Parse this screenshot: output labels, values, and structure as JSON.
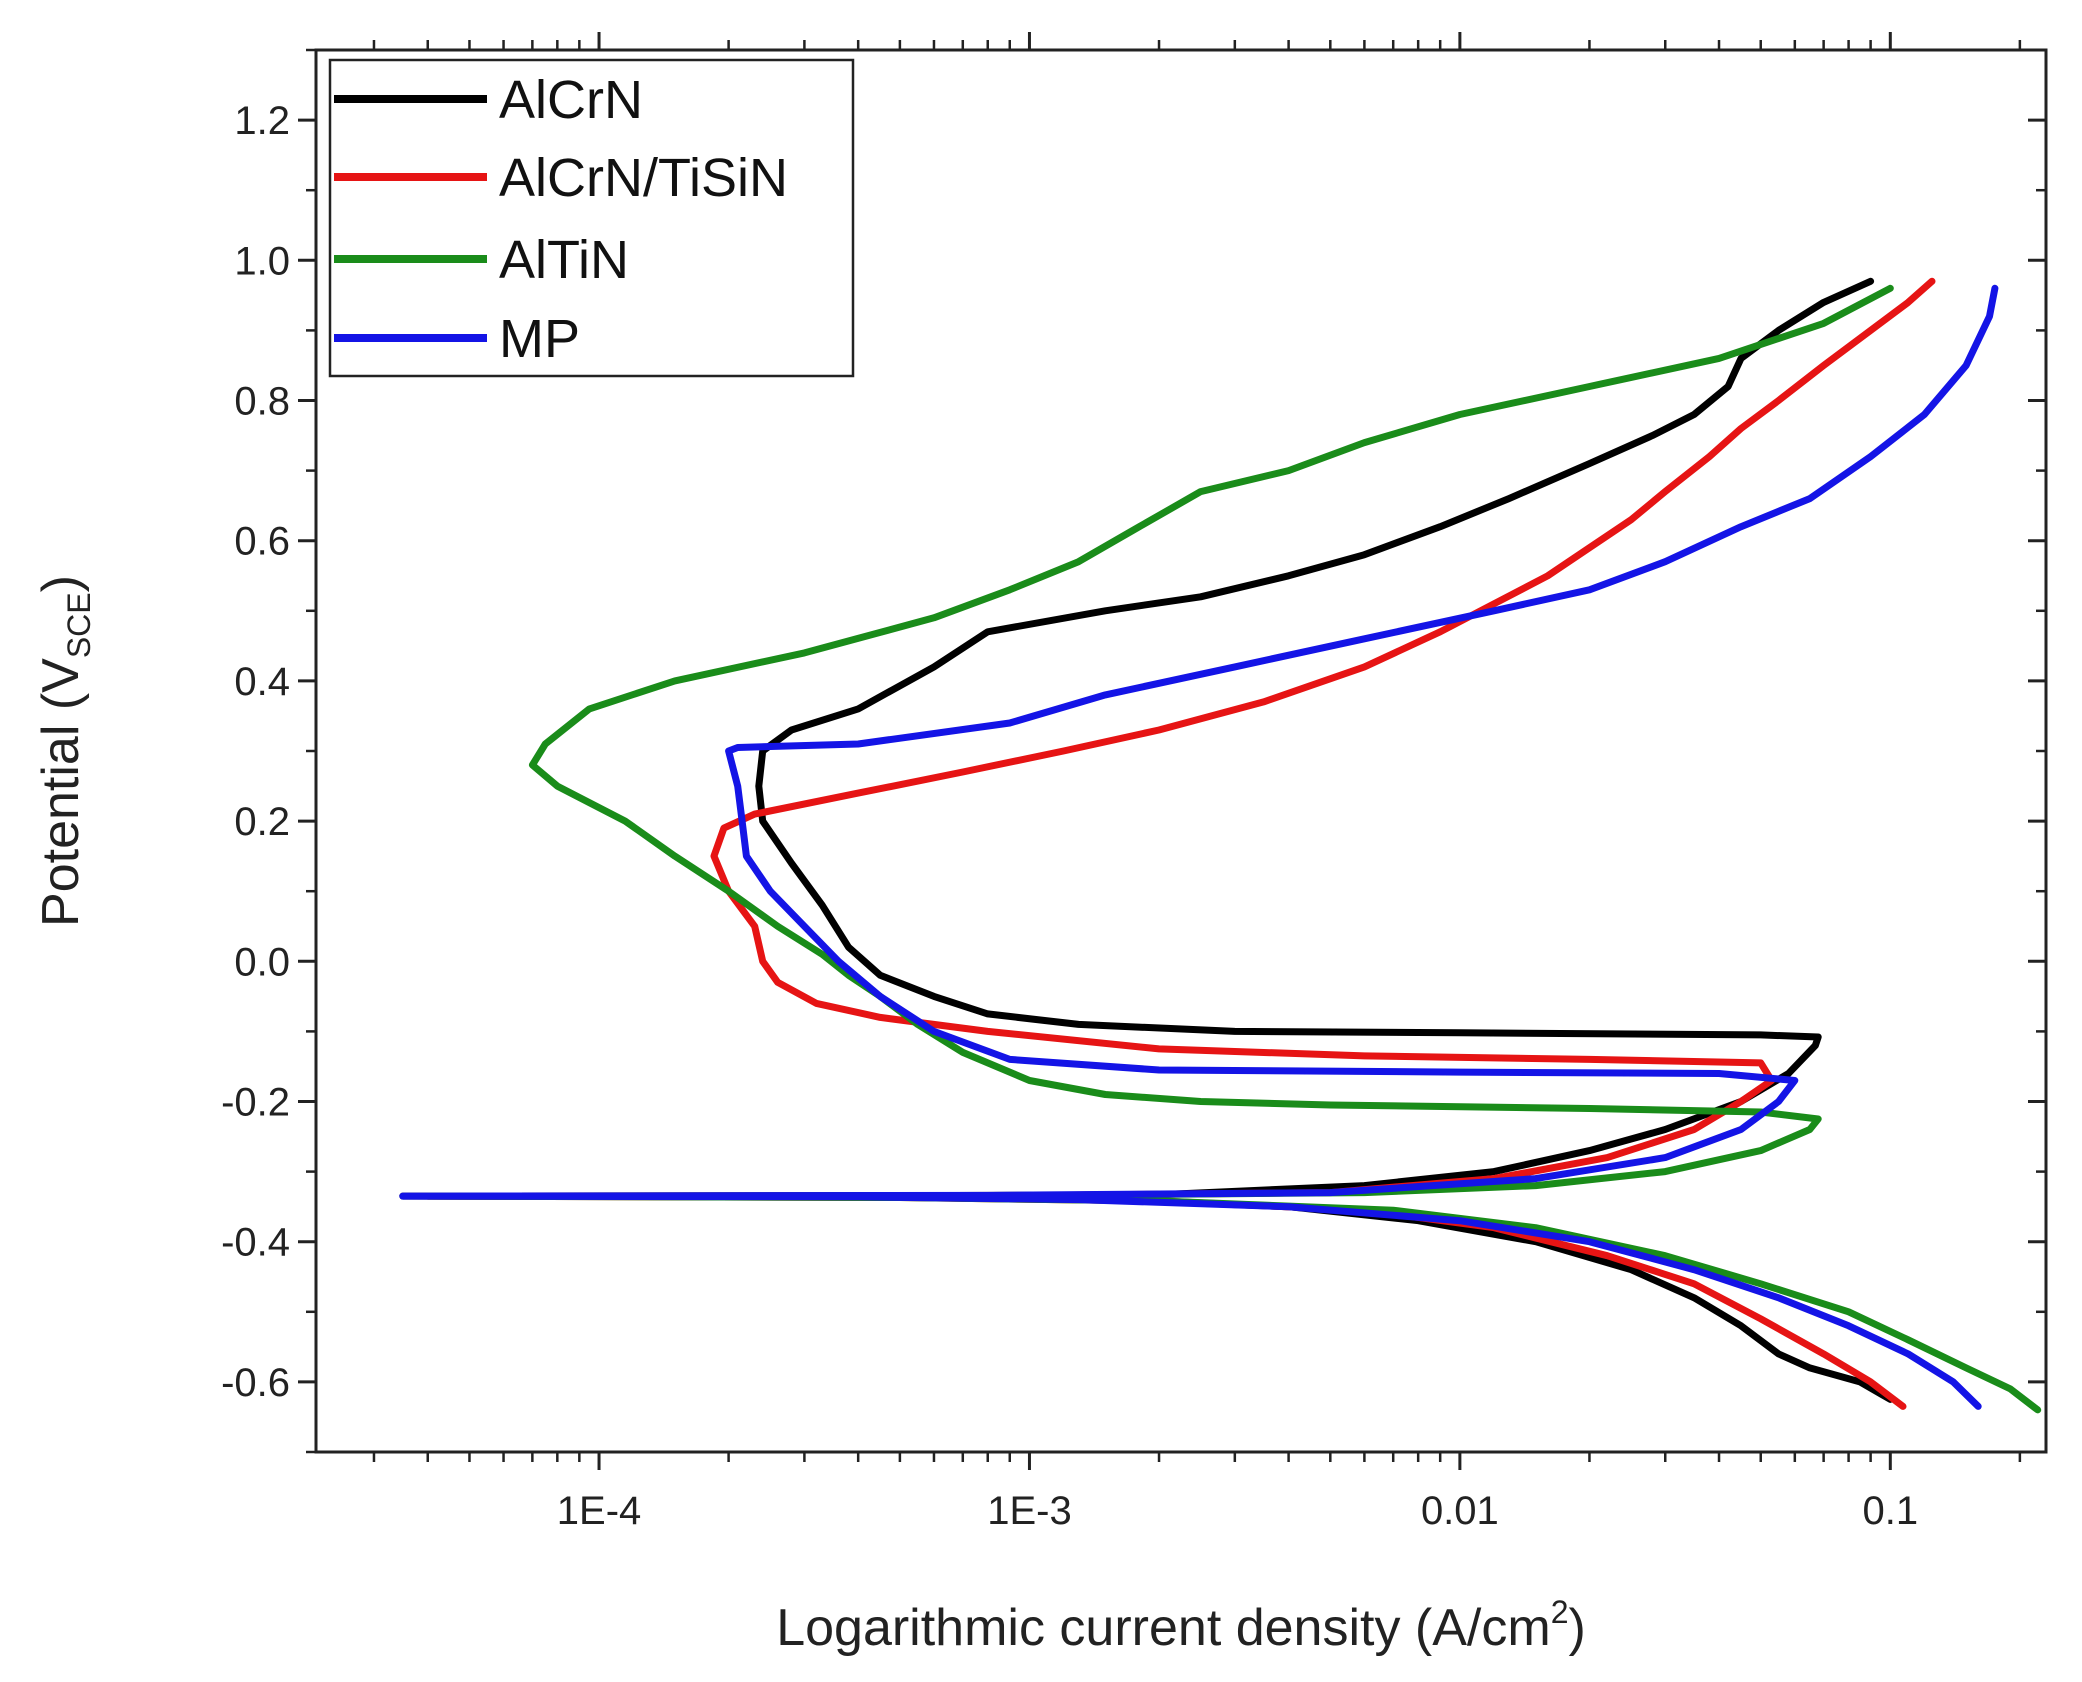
{
  "chart_data": {
    "type": "line",
    "title": "",
    "xlabel": {
      "main": "Logarithmic current density (A/cm",
      "sup": "2",
      "tail": ")"
    },
    "ylabel": {
      "main": "Potential (V",
      "sub": "SCE",
      "tail": ")"
    },
    "xscale": "log",
    "xlim": [
      2.2e-05,
      0.23
    ],
    "ylim": [
      -0.7,
      1.3
    ],
    "xticks": [
      {
        "value": 0.0001,
        "label": "1E-4"
      },
      {
        "value": 0.001,
        "label": "1E-3"
      },
      {
        "value": 0.01,
        "label": "0.01"
      },
      {
        "value": 0.1,
        "label": "0.1"
      }
    ],
    "yticks": [
      {
        "value": -0.6,
        "label": "-0.6"
      },
      {
        "value": -0.4,
        "label": "-0.4"
      },
      {
        "value": -0.2,
        "label": "-0.2"
      },
      {
        "value": 0.0,
        "label": "0.0"
      },
      {
        "value": 0.2,
        "label": "0.2"
      },
      {
        "value": 0.4,
        "label": "0.4"
      },
      {
        "value": 0.6,
        "label": "0.6"
      },
      {
        "value": 0.8,
        "label": "0.8"
      },
      {
        "value": 1.0,
        "label": "1.0"
      },
      {
        "value": 1.2,
        "label": "1.2"
      }
    ],
    "legend_position": "top-left",
    "series": [
      {
        "name": "AlCrN",
        "color": "#000000",
        "points": [
          [
            0.1,
            -0.625
          ],
          [
            0.085,
            -0.6
          ],
          [
            0.065,
            -0.58
          ],
          [
            0.055,
            -0.56
          ],
          [
            0.045,
            -0.52
          ],
          [
            0.035,
            -0.48
          ],
          [
            0.025,
            -0.44
          ],
          [
            0.015,
            -0.4
          ],
          [
            0.008,
            -0.37
          ],
          [
            0.004,
            -0.35
          ],
          [
            0.0015,
            -0.34
          ],
          [
            0.00045,
            -0.336
          ],
          [
            3.5e-05,
            -0.335
          ],
          [
            0.0004,
            -0.335
          ],
          [
            0.002,
            -0.333
          ],
          [
            0.006,
            -0.32
          ],
          [
            0.012,
            -0.3
          ],
          [
            0.02,
            -0.27
          ],
          [
            0.03,
            -0.24
          ],
          [
            0.045,
            -0.2
          ],
          [
            0.058,
            -0.16
          ],
          [
            0.067,
            -0.12
          ],
          [
            0.068,
            -0.108
          ],
          [
            0.05,
            -0.105
          ],
          [
            0.01,
            -0.102
          ],
          [
            0.003,
            -0.1
          ],
          [
            0.0013,
            -0.09
          ],
          [
            0.0008,
            -0.075
          ],
          [
            0.0006,
            -0.05
          ],
          [
            0.00045,
            -0.02
          ],
          [
            0.00038,
            0.02
          ],
          [
            0.00033,
            0.08
          ],
          [
            0.00028,
            0.14
          ],
          [
            0.00024,
            0.2
          ],
          [
            0.000235,
            0.25
          ],
          [
            0.00024,
            0.3
          ],
          [
            0.00028,
            0.33
          ],
          [
            0.0004,
            0.36
          ],
          [
            0.0006,
            0.42
          ],
          [
            0.0008,
            0.47
          ],
          [
            0.0015,
            0.5
          ],
          [
            0.0025,
            0.52
          ],
          [
            0.004,
            0.55
          ],
          [
            0.006,
            0.58
          ],
          [
            0.009,
            0.62
          ],
          [
            0.013,
            0.66
          ],
          [
            0.02,
            0.71
          ],
          [
            0.028,
            0.75
          ],
          [
            0.035,
            0.78
          ],
          [
            0.042,
            0.82
          ],
          [
            0.045,
            0.86
          ],
          [
            0.055,
            0.9
          ],
          [
            0.07,
            0.94
          ],
          [
            0.09,
            0.97
          ]
        ]
      },
      {
        "name": "AlCrN/TiSiN",
        "color": "#e61414",
        "points": [
          [
            0.107,
            -0.635
          ],
          [
            0.09,
            -0.6
          ],
          [
            0.07,
            -0.56
          ],
          [
            0.05,
            -0.51
          ],
          [
            0.035,
            -0.46
          ],
          [
            0.022,
            -0.42
          ],
          [
            0.012,
            -0.38
          ],
          [
            0.006,
            -0.355
          ],
          [
            0.002,
            -0.342
          ],
          [
            0.0005,
            -0.337
          ],
          [
            4e-05,
            -0.335
          ],
          [
            0.001,
            -0.334
          ],
          [
            0.005,
            -0.33
          ],
          [
            0.012,
            -0.31
          ],
          [
            0.022,
            -0.28
          ],
          [
            0.035,
            -0.24
          ],
          [
            0.045,
            -0.2
          ],
          [
            0.053,
            -0.17
          ],
          [
            0.05,
            -0.145
          ],
          [
            0.02,
            -0.14
          ],
          [
            0.006,
            -0.135
          ],
          [
            0.002,
            -0.125
          ],
          [
            0.0008,
            -0.1
          ],
          [
            0.00045,
            -0.08
          ],
          [
            0.00032,
            -0.06
          ],
          [
            0.00026,
            -0.03
          ],
          [
            0.00024,
            0.0
          ],
          [
            0.00023,
            0.05
          ],
          [
            0.0002,
            0.1
          ],
          [
            0.000185,
            0.15
          ],
          [
            0.000195,
            0.19
          ],
          [
            0.00023,
            0.21
          ],
          [
            0.0004,
            0.24
          ],
          [
            0.0007,
            0.27
          ],
          [
            0.0012,
            0.3
          ],
          [
            0.002,
            0.33
          ],
          [
            0.0035,
            0.37
          ],
          [
            0.006,
            0.42
          ],
          [
            0.009,
            0.47
          ],
          [
            0.012,
            0.51
          ],
          [
            0.016,
            0.55
          ],
          [
            0.02,
            0.59
          ],
          [
            0.025,
            0.63
          ],
          [
            0.03,
            0.67
          ],
          [
            0.038,
            0.72
          ],
          [
            0.045,
            0.76
          ],
          [
            0.055,
            0.8
          ],
          [
            0.07,
            0.85
          ],
          [
            0.09,
            0.9
          ],
          [
            0.11,
            0.94
          ],
          [
            0.125,
            0.97
          ]
        ]
      },
      {
        "name": "AlTiN",
        "color": "#1a8c1a",
        "points": [
          [
            0.22,
            -0.64
          ],
          [
            0.19,
            -0.61
          ],
          [
            0.15,
            -0.58
          ],
          [
            0.11,
            -0.54
          ],
          [
            0.08,
            -0.5
          ],
          [
            0.05,
            -0.46
          ],
          [
            0.03,
            -0.42
          ],
          [
            0.015,
            -0.38
          ],
          [
            0.007,
            -0.355
          ],
          [
            0.002,
            -0.342
          ],
          [
            0.0005,
            -0.337
          ],
          [
            4e-05,
            -0.335
          ],
          [
            0.001,
            -0.334
          ],
          [
            0.006,
            -0.33
          ],
          [
            0.015,
            -0.32
          ],
          [
            0.03,
            -0.3
          ],
          [
            0.05,
            -0.27
          ],
          [
            0.065,
            -0.24
          ],
          [
            0.068,
            -0.225
          ],
          [
            0.05,
            -0.215
          ],
          [
            0.02,
            -0.21
          ],
          [
            0.005,
            -0.205
          ],
          [
            0.0025,
            -0.2
          ],
          [
            0.0015,
            -0.19
          ],
          [
            0.001,
            -0.17
          ],
          [
            0.0007,
            -0.13
          ],
          [
            0.00055,
            -0.09
          ],
          [
            0.00045,
            -0.05
          ],
          [
            0.00038,
            -0.02
          ],
          [
            0.00033,
            0.01
          ],
          [
            0.00026,
            0.05
          ],
          [
            0.0002,
            0.1
          ],
          [
            0.00015,
            0.15
          ],
          [
            0.000115,
            0.2
          ],
          [
            8e-05,
            0.25
          ],
          [
            7e-05,
            0.28
          ],
          [
            7.5e-05,
            0.31
          ],
          [
            9.5e-05,
            0.36
          ],
          [
            0.00015,
            0.4
          ],
          [
            0.0003,
            0.44
          ],
          [
            0.0006,
            0.49
          ],
          [
            0.0009,
            0.53
          ],
          [
            0.0013,
            0.57
          ],
          [
            0.0018,
            0.62
          ],
          [
            0.0025,
            0.67
          ],
          [
            0.004,
            0.7
          ],
          [
            0.006,
            0.74
          ],
          [
            0.01,
            0.78
          ],
          [
            0.02,
            0.82
          ],
          [
            0.04,
            0.86
          ],
          [
            0.07,
            0.91
          ],
          [
            0.1,
            0.96
          ]
        ]
      },
      {
        "name": "MP",
        "color": "#1414e6",
        "points": [
          [
            0.16,
            -0.635
          ],
          [
            0.14,
            -0.6
          ],
          [
            0.11,
            -0.56
          ],
          [
            0.08,
            -0.52
          ],
          [
            0.055,
            -0.48
          ],
          [
            0.035,
            -0.44
          ],
          [
            0.02,
            -0.4
          ],
          [
            0.01,
            -0.37
          ],
          [
            0.004,
            -0.35
          ],
          [
            0.0013,
            -0.34
          ],
          [
            0.0004,
            -0.336
          ],
          [
            3.5e-05,
            -0.335
          ],
          [
            0.0008,
            -0.334
          ],
          [
            0.005,
            -0.33
          ],
          [
            0.015,
            -0.31
          ],
          [
            0.03,
            -0.28
          ],
          [
            0.045,
            -0.24
          ],
          [
            0.055,
            -0.2
          ],
          [
            0.06,
            -0.17
          ],
          [
            0.04,
            -0.16
          ],
          [
            0.01,
            -0.158
          ],
          [
            0.002,
            -0.155
          ],
          [
            0.0009,
            -0.14
          ],
          [
            0.0006,
            -0.1
          ],
          [
            0.00045,
            -0.05
          ],
          [
            0.00036,
            0.0
          ],
          [
            0.0003,
            0.05
          ],
          [
            0.00025,
            0.1
          ],
          [
            0.00022,
            0.15
          ],
          [
            0.000215,
            0.2
          ],
          [
            0.00021,
            0.25
          ],
          [
            0.0002,
            0.3
          ],
          [
            0.00021,
            0.305
          ],
          [
            0.0004,
            0.31
          ],
          [
            0.0009,
            0.34
          ],
          [
            0.0015,
            0.38
          ],
          [
            0.003,
            0.42
          ],
          [
            0.006,
            0.46
          ],
          [
            0.012,
            0.5
          ],
          [
            0.02,
            0.53
          ],
          [
            0.03,
            0.57
          ],
          [
            0.045,
            0.62
          ],
          [
            0.065,
            0.66
          ],
          [
            0.09,
            0.72
          ],
          [
            0.12,
            0.78
          ],
          [
            0.15,
            0.85
          ],
          [
            0.17,
            0.92
          ],
          [
            0.175,
            0.96
          ]
        ]
      }
    ]
  }
}
